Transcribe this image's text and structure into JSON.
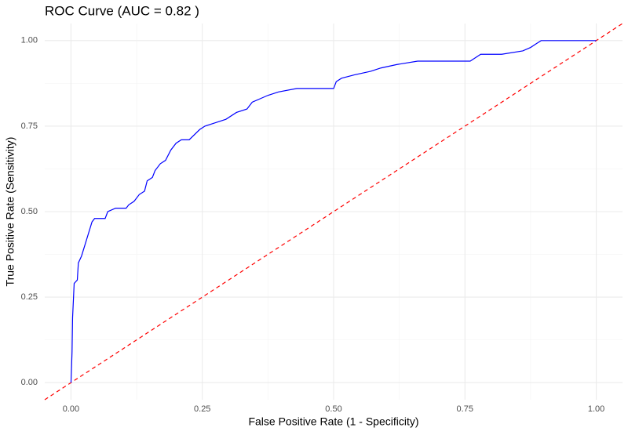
{
  "chart_data": {
    "type": "line",
    "title": "ROC Curve (AUC = 0.82 )",
    "x_label": "False Positive Rate (1 - Specificity)",
    "y_label": "True Positive Rate (Sensitivity)",
    "xlim": [
      -0.05,
      1.05
    ],
    "ylim": [
      -0.05,
      1.05
    ],
    "xticks": [
      {
        "value": 0,
        "label": "0.00"
      },
      {
        "value": 0.25,
        "label": "0.25"
      },
      {
        "value": 0.5,
        "label": "0.50"
      },
      {
        "value": 0.75,
        "label": "0.75"
      },
      {
        "value": 1,
        "label": "1.00"
      }
    ],
    "yticks": [
      {
        "value": 0,
        "label": "0.00"
      },
      {
        "value": 0.25,
        "label": "0.25"
      },
      {
        "value": 0.5,
        "label": "0.50"
      },
      {
        "value": 0.75,
        "label": "0.75"
      },
      {
        "value": 1,
        "label": "1.00"
      }
    ],
    "grid": true,
    "minor_grid": true,
    "reference_line": {
      "color": "#ff0000",
      "dashed": true
    },
    "series": [
      {
        "color": "#0000ff",
        "x": [
          0,
          0.002,
          0.003,
          0.006,
          0.012,
          0.014,
          0.02,
          0.028,
          0.032,
          0.036,
          0.04,
          0.045,
          0.065,
          0.07,
          0.085,
          0.105,
          0.11,
          0.12,
          0.13,
          0.14,
          0.145,
          0.155,
          0.16,
          0.17,
          0.18,
          0.19,
          0.2,
          0.21,
          0.225,
          0.245,
          0.255,
          0.275,
          0.295,
          0.315,
          0.335,
          0.345,
          0.36,
          0.375,
          0.395,
          0.43,
          0.5,
          0.505,
          0.515,
          0.54,
          0.57,
          0.59,
          0.62,
          0.66,
          0.76,
          0.77,
          0.78,
          0.82,
          0.86,
          0.875,
          0.885,
          0.895,
          1.0
        ],
        "values": [
          0,
          0.09,
          0.19,
          0.29,
          0.3,
          0.35,
          0.37,
          0.41,
          0.43,
          0.45,
          0.47,
          0.48,
          0.48,
          0.5,
          0.51,
          0.51,
          0.52,
          0.53,
          0.55,
          0.56,
          0.59,
          0.6,
          0.62,
          0.64,
          0.65,
          0.68,
          0.7,
          0.71,
          0.71,
          0.74,
          0.75,
          0.76,
          0.77,
          0.79,
          0.8,
          0.82,
          0.83,
          0.84,
          0.85,
          0.86,
          0.86,
          0.88,
          0.89,
          0.9,
          0.91,
          0.92,
          0.93,
          0.94,
          0.94,
          0.95,
          0.96,
          0.96,
          0.97,
          0.98,
          0.99,
          1.0,
          1.0
        ]
      }
    ]
  }
}
